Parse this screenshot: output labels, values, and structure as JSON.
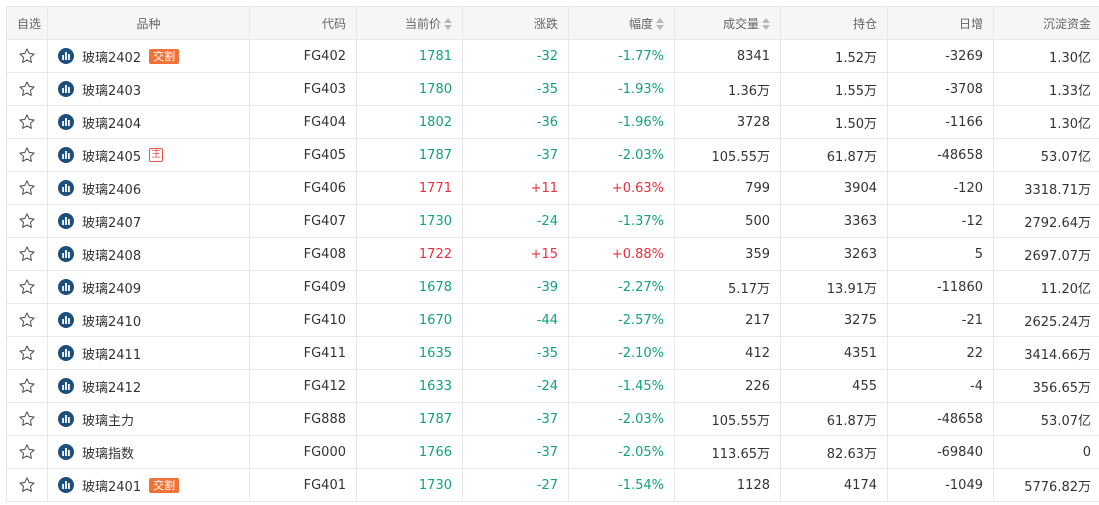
{
  "headers": {
    "watch": "自选",
    "name": "品种",
    "code": "代码",
    "price": "当前价",
    "change": "涨跌",
    "range": "幅度",
    "volume": "成交量",
    "position": "持仓",
    "daily": "日增",
    "capital": "沉淀资金"
  },
  "colors": {
    "up": "#e9303f",
    "down": "#11a37a",
    "icon": "#1c4f7c",
    "badge": "#f07237"
  },
  "rows": [
    {
      "name": "玻璃2402",
      "badge": "交割",
      "badge_type": "jiaoge",
      "code": "FG402",
      "price": "1781",
      "change": "-32",
      "range": "-1.77%",
      "volume": "8341",
      "position": "1.52万",
      "daily": "-3269",
      "capital": "1.30亿",
      "trend": "down"
    },
    {
      "name": "玻璃2403",
      "badge": "",
      "badge_type": "",
      "code": "FG403",
      "price": "1780",
      "change": "-35",
      "range": "-1.93%",
      "volume": "1.36万",
      "position": "1.55万",
      "daily": "-3708",
      "capital": "1.33亿",
      "trend": "down"
    },
    {
      "name": "玻璃2404",
      "badge": "",
      "badge_type": "",
      "code": "FG404",
      "price": "1802",
      "change": "-36",
      "range": "-1.96%",
      "volume": "3728",
      "position": "1.50万",
      "daily": "-1166",
      "capital": "1.30亿",
      "trend": "down"
    },
    {
      "name": "玻璃2405",
      "badge": "主",
      "badge_type": "zhu",
      "code": "FG405",
      "price": "1787",
      "change": "-37",
      "range": "-2.03%",
      "volume": "105.55万",
      "position": "61.87万",
      "daily": "-48658",
      "capital": "53.07亿",
      "trend": "down"
    },
    {
      "name": "玻璃2406",
      "badge": "",
      "badge_type": "",
      "code": "FG406",
      "price": "1771",
      "change": "+11",
      "range": "+0.63%",
      "volume": "799",
      "position": "3904",
      "daily": "-120",
      "capital": "3318.71万",
      "trend": "up"
    },
    {
      "name": "玻璃2407",
      "badge": "",
      "badge_type": "",
      "code": "FG407",
      "price": "1730",
      "change": "-24",
      "range": "-1.37%",
      "volume": "500",
      "position": "3363",
      "daily": "-12",
      "capital": "2792.64万",
      "trend": "down"
    },
    {
      "name": "玻璃2408",
      "badge": "",
      "badge_type": "",
      "code": "FG408",
      "price": "1722",
      "change": "+15",
      "range": "+0.88%",
      "volume": "359",
      "position": "3263",
      "daily": "5",
      "capital": "2697.07万",
      "trend": "up"
    },
    {
      "name": "玻璃2409",
      "badge": "",
      "badge_type": "",
      "code": "FG409",
      "price": "1678",
      "change": "-39",
      "range": "-2.27%",
      "volume": "5.17万",
      "position": "13.91万",
      "daily": "-11860",
      "capital": "11.20亿",
      "trend": "down"
    },
    {
      "name": "玻璃2410",
      "badge": "",
      "badge_type": "",
      "code": "FG410",
      "price": "1670",
      "change": "-44",
      "range": "-2.57%",
      "volume": "217",
      "position": "3275",
      "daily": "-21",
      "capital": "2625.24万",
      "trend": "down"
    },
    {
      "name": "玻璃2411",
      "badge": "",
      "badge_type": "",
      "code": "FG411",
      "price": "1635",
      "change": "-35",
      "range": "-2.10%",
      "volume": "412",
      "position": "4351",
      "daily": "22",
      "capital": "3414.66万",
      "trend": "down"
    },
    {
      "name": "玻璃2412",
      "badge": "",
      "badge_type": "",
      "code": "FG412",
      "price": "1633",
      "change": "-24",
      "range": "-1.45%",
      "volume": "226",
      "position": "455",
      "daily": "-4",
      "capital": "356.65万",
      "trend": "down"
    },
    {
      "name": "玻璃主力",
      "badge": "",
      "badge_type": "",
      "code": "FG888",
      "price": "1787",
      "change": "-37",
      "range": "-2.03%",
      "volume": "105.55万",
      "position": "61.87万",
      "daily": "-48658",
      "capital": "53.07亿",
      "trend": "down"
    },
    {
      "name": "玻璃指数",
      "badge": "",
      "badge_type": "",
      "code": "FG000",
      "price": "1766",
      "change": "-37",
      "range": "-2.05%",
      "volume": "113.65万",
      "position": "82.63万",
      "daily": "-69840",
      "capital": "0",
      "trend": "down"
    },
    {
      "name": "玻璃2401",
      "badge": "交割",
      "badge_type": "jiaoge",
      "code": "FG401",
      "price": "1730",
      "change": "-27",
      "range": "-1.54%",
      "volume": "1128",
      "position": "4174",
      "daily": "-1049",
      "capital": "5776.82万",
      "trend": "down"
    }
  ]
}
